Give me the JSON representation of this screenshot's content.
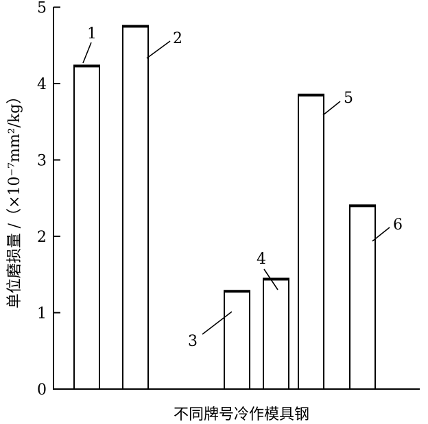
{
  "chart_data": {
    "type": "bar",
    "categories": [
      "1",
      "2",
      "3",
      "4",
      "5",
      "6"
    ],
    "values": [
      4.23,
      4.75,
      1.28,
      1.44,
      3.85,
      2.4
    ],
    "xlabel": "不同牌号冷作模具钢",
    "ylabel": "单位磨损量 /（×10⁻⁷mm²/kg）",
    "ylim": [
      0,
      5
    ],
    "yticks": [
      "0",
      "1",
      "2",
      "3",
      "4",
      "5"
    ],
    "grid": false,
    "legend": "none"
  }
}
